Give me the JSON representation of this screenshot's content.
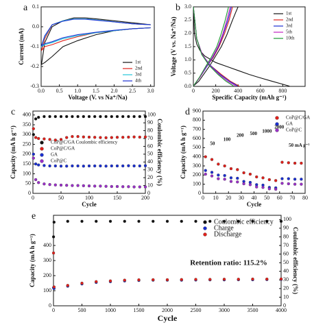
{
  "chart_data": [
    {
      "type": "line",
      "panel_label": "a",
      "xlabel": "Voltage (V. vs Na⁺/Na)",
      "ylabel": "Current (mA)",
      "xlim": [
        0,
        3.1
      ],
      "xticks": [
        {
          "value": 0,
          "label": "0.0"
        },
        0.5,
        {
          "value": 1,
          "label": "1.0"
        },
        1.5,
        {
          "value": 2,
          "label": "2.0"
        },
        2.5,
        {
          "value": 3,
          "label": "3.0"
        }
      ],
      "ylim": [
        -0.3,
        0.1
      ],
      "yticks": [
        -0.3,
        -0.2,
        -0.1,
        {
          "value": 0,
          "label": "0.0"
        },
        0.1
      ],
      "legend": "lower right",
      "series": [
        {
          "name": "1st",
          "color": "#111111",
          "x": [
            3.0,
            2.5,
            2.0,
            1.5,
            1.0,
            0.6,
            0.3,
            0.1,
            0.01,
            0.1,
            0.3,
            0.6,
            0.9,
            1.2,
            1.5,
            2.0,
            2.5,
            3.0
          ],
          "values": [
            -0.005,
            -0.01,
            -0.02,
            -0.04,
            -0.07,
            -0.1,
            -0.15,
            -0.18,
            -0.19,
            -0.08,
            0.0,
            0.03,
            0.045,
            0.045,
            0.04,
            0.03,
            0.02,
            0.01
          ]
        },
        {
          "name": "2nd",
          "color": "#e0201b",
          "x": [
            3.0,
            2.5,
            2.0,
            1.5,
            1.0,
            0.6,
            0.3,
            0.1,
            0.01,
            0.1,
            0.3,
            0.6,
            0.9,
            1.2,
            1.5,
            2.0,
            2.5,
            3.0
          ],
          "values": [
            -0.005,
            -0.01,
            -0.02,
            -0.03,
            -0.05,
            -0.07,
            -0.09,
            -0.1,
            -0.12,
            -0.06,
            0.01,
            0.03,
            0.04,
            0.04,
            0.035,
            0.025,
            0.015,
            0.01
          ]
        },
        {
          "name": "3rd",
          "color": "#22c6d8",
          "x": [
            3.0,
            2.5,
            2.0,
            1.5,
            1.0,
            0.6,
            0.3,
            0.1,
            0.01,
            0.1,
            0.3,
            0.6,
            0.9,
            1.2,
            1.5,
            2.0,
            2.5,
            3.0
          ],
          "values": [
            -0.005,
            -0.01,
            -0.02,
            -0.03,
            -0.045,
            -0.06,
            -0.08,
            -0.09,
            -0.1,
            -0.05,
            0.01,
            0.03,
            0.04,
            0.04,
            0.035,
            0.025,
            0.015,
            0.01
          ]
        },
        {
          "name": "4th",
          "color": "#1a2fd1",
          "x": [
            3.0,
            2.5,
            2.0,
            1.5,
            1.0,
            0.6,
            0.3,
            0.1,
            0.01,
            0.1,
            0.3,
            0.6,
            0.9,
            1.2,
            1.5,
            2.0,
            2.5,
            3.0
          ],
          "values": [
            -0.005,
            -0.01,
            -0.018,
            -0.028,
            -0.04,
            -0.055,
            -0.075,
            -0.085,
            -0.095,
            -0.045,
            0.01,
            0.028,
            0.038,
            0.038,
            0.033,
            0.024,
            0.015,
            0.01
          ]
        }
      ]
    },
    {
      "type": "line",
      "panel_label": "b",
      "xlabel": "Specific Capacity (mAh g⁻¹)",
      "ylabel": "Voltage (V vs. Na⁺/Na)",
      "xlim": [
        0,
        1000
      ],
      "xticks": [
        0,
        200,
        400,
        600,
        800
      ],
      "ylim": [
        0,
        3
      ],
      "yticks": [
        {
          "value": 0,
          "label": "0.0"
        },
        0.5,
        {
          "value": 1,
          "label": "1.0"
        },
        1.5,
        {
          "value": 2,
          "label": "2.0"
        },
        2.5,
        {
          "value": 3,
          "label": "3.0"
        }
      ],
      "legend": "upper right",
      "series": [
        {
          "name": "1st",
          "color": "#111111",
          "x": [
            0,
            10,
            30,
            60,
            100,
            200,
            300,
            400,
            500,
            600,
            700,
            800,
            860,
            null,
            0,
            50,
            100,
            150,
            200,
            250,
            300,
            350,
            380,
            400
          ],
          "values": [
            3.0,
            2.0,
            1.6,
            1.35,
            1.15,
            0.9,
            0.75,
            0.6,
            0.45,
            0.32,
            0.2,
            0.08,
            0.01,
            null,
            0.01,
            0.2,
            0.5,
            0.8,
            1.15,
            1.5,
            1.95,
            2.5,
            2.8,
            3.0
          ]
        },
        {
          "name": "2nd",
          "color": "#e0201b",
          "x": [
            0,
            30,
            80,
            150,
            250,
            330,
            380,
            410,
            null,
            0,
            60,
            120,
            180,
            230,
            280,
            320,
            350
          ],
          "values": [
            3.0,
            1.8,
            1.2,
            0.8,
            0.45,
            0.2,
            0.08,
            0.01,
            null,
            0.01,
            0.35,
            0.75,
            1.1,
            1.5,
            2.0,
            2.5,
            3.0
          ]
        },
        {
          "name": "3rd",
          "color": "#1a2fd1",
          "x": [
            0,
            30,
            80,
            150,
            240,
            320,
            370,
            395,
            null,
            0,
            60,
            120,
            175,
            225,
            270,
            310,
            340
          ],
          "values": [
            3.0,
            1.8,
            1.2,
            0.8,
            0.45,
            0.2,
            0.08,
            0.01,
            null,
            0.01,
            0.35,
            0.75,
            1.1,
            1.5,
            2.0,
            2.5,
            3.0
          ]
        },
        {
          "name": "5th",
          "color": "#c020c0",
          "x": [
            0,
            30,
            80,
            145,
            230,
            305,
            355,
            380,
            null,
            0,
            60,
            115,
            170,
            220,
            265,
            300,
            330
          ],
          "values": [
            3.0,
            1.8,
            1.2,
            0.8,
            0.45,
            0.2,
            0.08,
            0.01,
            null,
            0.01,
            0.35,
            0.75,
            1.1,
            1.5,
            2.0,
            2.5,
            3.0
          ]
        },
        {
          "name": "10th",
          "color": "#1a9a30",
          "x": [
            0,
            30,
            75,
            140,
            220,
            290,
            335,
            360,
            null,
            0,
            55,
            110,
            160,
            210,
            250,
            285,
            315
          ],
          "values": [
            3.0,
            1.8,
            1.2,
            0.8,
            0.45,
            0.2,
            0.08,
            0.01,
            null,
            0.01,
            0.35,
            0.75,
            1.1,
            1.5,
            2.0,
            2.5,
            3.0
          ]
        }
      ]
    },
    {
      "type": "scatter",
      "panel_label": "c",
      "xlabel": "Cycle",
      "ylabel": "Capacity (mA h g⁻¹)",
      "y2label": "Coulombic efficiency (%)",
      "xlim": [
        0,
        200
      ],
      "xticks": [
        0,
        50,
        100,
        150,
        200
      ],
      "ylim": [
        0,
        420
      ],
      "yticks": [
        0,
        50,
        100,
        150,
        200,
        250,
        300,
        350,
        400
      ],
      "y2lim": [
        0,
        105
      ],
      "y2ticks": [
        0,
        10,
        20,
        30,
        40,
        50,
        60,
        70,
        80,
        90,
        100
      ],
      "legend": "center left",
      "series": [
        {
          "name": "CoP@C/GA Coulombic efficiency",
          "color": "#111111",
          "axis": "y2",
          "x": [
            1,
            5,
            10,
            20,
            30,
            40,
            50,
            60,
            70,
            80,
            90,
            100,
            110,
            120,
            130,
            140,
            150,
            160,
            170,
            180,
            190,
            200
          ],
          "values": [
            75,
            95,
            97,
            98,
            98,
            98,
            98,
            98,
            98,
            98,
            98,
            98,
            98,
            98,
            98,
            98,
            98,
            98,
            98,
            98,
            98,
            98
          ]
        },
        {
          "name": "CoP@C/GA",
          "color": "#e0201b",
          "x": [
            1,
            5,
            10,
            20,
            30,
            40,
            50,
            60,
            70,
            80,
            90,
            100,
            110,
            120,
            130,
            140,
            150,
            160,
            170,
            180,
            190,
            200
          ],
          "values": [
            330,
            285,
            280,
            278,
            275,
            272,
            275,
            285,
            290,
            290,
            288,
            287,
            286,
            285,
            284,
            285,
            286,
            286,
            287,
            288,
            287,
            288
          ]
        },
        {
          "name": "GA",
          "color": "#1a2fd1",
          "x": [
            1,
            5,
            10,
            20,
            30,
            40,
            50,
            60,
            70,
            80,
            90,
            100,
            110,
            120,
            130,
            140,
            150,
            160,
            170,
            180,
            190,
            200
          ],
          "values": [
            200,
            150,
            145,
            142,
            140,
            140,
            139,
            139,
            140,
            140,
            139,
            140,
            140,
            140,
            139,
            140,
            140,
            140,
            141,
            140,
            140,
            141
          ]
        },
        {
          "name": "CoP@C",
          "color": "#9a30c8",
          "x": [
            1,
            5,
            10,
            20,
            30,
            40,
            50,
            60,
            70,
            80,
            90,
            100,
            110,
            120,
            130,
            140,
            150,
            160,
            170,
            180,
            190,
            200
          ],
          "values": [
            180,
            70,
            55,
            48,
            45,
            43,
            42,
            41,
            40,
            40,
            39,
            38,
            37,
            37,
            36,
            35,
            35,
            34,
            34,
            33,
            33,
            33
          ]
        }
      ]
    },
    {
      "type": "scatter",
      "panel_label": "d",
      "xlabel": "Cycle",
      "ylabel": "Capacity (mA h g⁻¹)",
      "xlim": [
        0,
        80
      ],
      "xticks": [
        0,
        10,
        20,
        30,
        40,
        50,
        60,
        70,
        80
      ],
      "ylim": [
        0,
        900
      ],
      "yticks": [
        0,
        100,
        200,
        300,
        400,
        500,
        600,
        700,
        800,
        900
      ],
      "legend": "upper right",
      "annotations": [
        {
          "text": "50",
          "color": "#111111"
        },
        {
          "text": "100",
          "color": "#111111"
        },
        {
          "text": "200",
          "color": "#111111"
        },
        {
          "text": "500",
          "color": "#111111"
        },
        {
          "text": "1000",
          "color": "#111111"
        },
        {
          "text": "2000",
          "color": "#111111"
        },
        {
          "text": "50 mA g⁻¹",
          "color": "#111111"
        }
      ],
      "series": [
        {
          "name": "CoP@C/GA",
          "color": "#e0201b",
          "x": [
            2,
            7,
            12,
            17,
            22,
            27,
            32,
            37,
            42,
            47,
            52,
            57,
            62,
            67,
            72,
            77
          ],
          "values": [
            400,
            370,
            320,
            300,
            270,
            260,
            225,
            210,
            180,
            170,
            150,
            140,
            340,
            335,
            330,
            330
          ]
        },
        {
          "name": "GA",
          "color": "#1a2fd1",
          "x": [
            2,
            7,
            12,
            17,
            22,
            27,
            32,
            37,
            42,
            47,
            52,
            57,
            62,
            67,
            72,
            77
          ],
          "values": [
            250,
            230,
            200,
            195,
            170,
            165,
            130,
            120,
            95,
            90,
            65,
            60,
            160,
            160,
            155,
            155
          ]
        },
        {
          "name": "CoP@C",
          "color": "#9a30c8",
          "x": [
            2,
            7,
            12,
            17,
            22,
            27,
            32,
            37,
            42,
            47,
            52,
            57,
            62,
            67,
            72,
            77
          ],
          "values": [
            210,
            190,
            160,
            155,
            130,
            125,
            105,
            95,
            70,
            65,
            50,
            45,
            110,
            105,
            100,
            100
          ]
        }
      ]
    },
    {
      "type": "scatter",
      "panel_label": "e",
      "xlabel": "Cycle",
      "ylabel": "Capacity (mA h g⁻¹)",
      "y2label": "Coulombic efficiency (%)",
      "xlim": [
        0,
        4000
      ],
      "xticks": [
        0,
        500,
        1000,
        1500,
        2000,
        2500,
        3000,
        3500,
        4000
      ],
      "ylim": [
        0,
        600
      ],
      "yticks": [
        0,
        100,
        200,
        300,
        400
      ],
      "y2lim": [
        0,
        105
      ],
      "y2ticks": [
        0,
        10,
        20,
        30,
        40,
        50,
        60,
        70,
        80,
        90,
        100
      ],
      "legend": "upper right",
      "annotations": [
        {
          "text": "Retention ratio: 115.2%",
          "color": "#e0201b"
        }
      ],
      "series": [
        {
          "name": "Coulombic efficiency",
          "color": "#111111",
          "axis": "y2",
          "x": [
            1,
            10,
            250,
            500,
            750,
            1000,
            1250,
            1500,
            1750,
            2000,
            2250,
            2500,
            2750,
            3000,
            3250,
            3500,
            3750,
            4000
          ],
          "values": [
            80,
            97,
            98,
            98,
            98,
            98,
            98,
            98,
            98,
            98,
            98,
            98,
            98,
            98,
            98,
            98,
            98,
            98
          ]
        },
        {
          "name": "Charge",
          "color": "#1a2fd1",
          "x": [
            1,
            10,
            250,
            500,
            750,
            1000,
            1250,
            1500,
            1750,
            2000,
            2250,
            2500,
            2750,
            3000,
            3250,
            3500,
            3750,
            4000
          ],
          "values": [
            120,
            115,
            130,
            145,
            155,
            160,
            165,
            168,
            170,
            170,
            170,
            171,
            172,
            172,
            173,
            173,
            174,
            175
          ]
        },
        {
          "name": "Discharge",
          "color": "#e0201b",
          "x": [
            1,
            10,
            250,
            500,
            750,
            1000,
            1250,
            1500,
            1750,
            2000,
            2250,
            2500,
            2750,
            3000,
            3250,
            3500,
            3750,
            4000
          ],
          "values": [
            350,
            125,
            135,
            150,
            160,
            165,
            170,
            172,
            173,
            173,
            174,
            175,
            175,
            176,
            176,
            177,
            177,
            178
          ]
        }
      ]
    }
  ]
}
